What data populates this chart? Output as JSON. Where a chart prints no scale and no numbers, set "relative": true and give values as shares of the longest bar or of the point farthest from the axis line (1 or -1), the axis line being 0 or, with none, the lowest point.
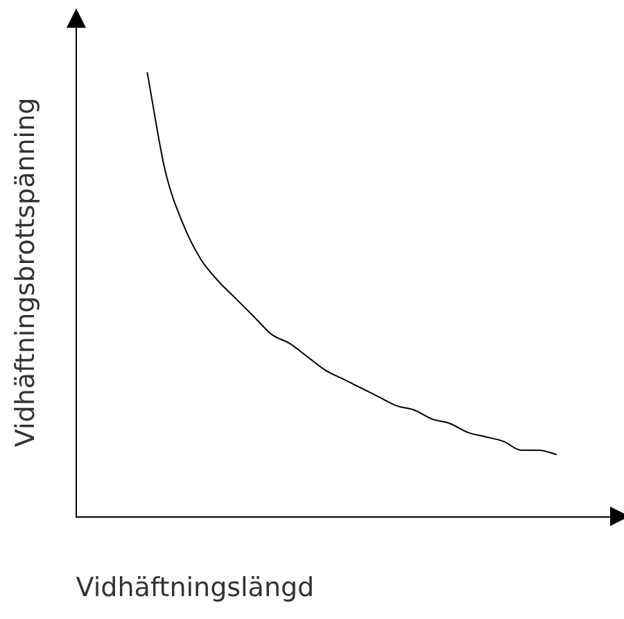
{
  "chart_data": {
    "type": "line",
    "xlabel": "Vidhäftningslängd",
    "ylabel": "Vidhäftningsbrottspänning",
    "relative": true,
    "color": "#000000",
    "grid": false,
    "legend": false,
    "marker": "none",
    "line_style": "solid",
    "categories": [
      null,
      null,
      null,
      null,
      null,
      null,
      null,
      null,
      null,
      null,
      null,
      null,
      null,
      null,
      null,
      null,
      null,
      null,
      null,
      null,
      null,
      null,
      null,
      null,
      null,
      null,
      null,
      null,
      null,
      null,
      null
    ],
    "values": [
      null,
      null,
      null,
      null,
      1.0,
      0.78,
      0.66,
      0.58,
      0.53,
      0.49,
      0.45,
      0.41,
      0.39,
      0.36,
      0.33,
      0.31,
      0.29,
      0.27,
      0.25,
      0.24,
      0.22,
      0.21,
      0.19,
      0.18,
      0.17,
      0.15,
      0.15,
      0.14,
      null,
      null,
      null
    ]
  }
}
